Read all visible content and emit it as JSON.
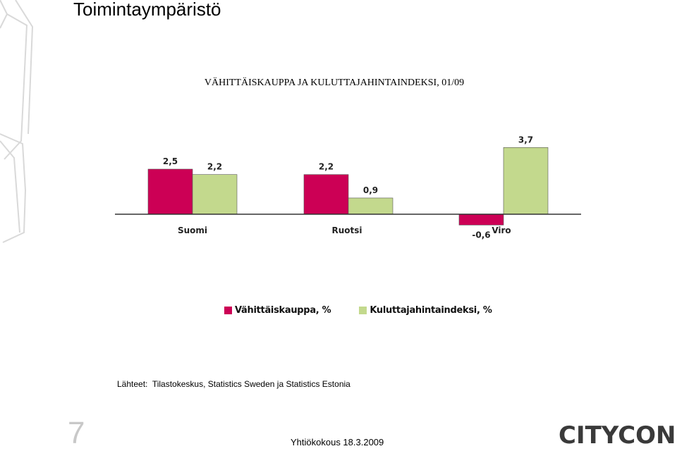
{
  "slide": {
    "title": "Toimintaympäristö",
    "page_number": "7",
    "footer": "Yhtiökokous 18.3.2009",
    "logo_text": "CITYCON",
    "sources": "Lähteet:  Tilastokeskus, Statistics Sweden ja Statistics Estonia"
  },
  "chart_data": {
    "type": "bar",
    "title": "VÄHITTÄISKAUPPA JA KULUTTAJAHINTAINDEKSI, 01/09",
    "categories": [
      "Suomi",
      "Ruotsi",
      "Viro"
    ],
    "series": [
      {
        "name": "Vähittäiskauppa, %",
        "values": [
          2.5,
          2.2,
          -0.6
        ],
        "labels": [
          "2,5",
          "2,2",
          "-0,6"
        ],
        "color": "#cc0055"
      },
      {
        "name": "Kuluttajahintaindeksi, %",
        "values": [
          2.2,
          0.9,
          3.7
        ],
        "labels": [
          "2,2",
          "0,9",
          "3,7"
        ],
        "color": "#c3d98d"
      }
    ],
    "xlabel": "",
    "ylabel": "",
    "grid": false,
    "legend": "bottom"
  }
}
